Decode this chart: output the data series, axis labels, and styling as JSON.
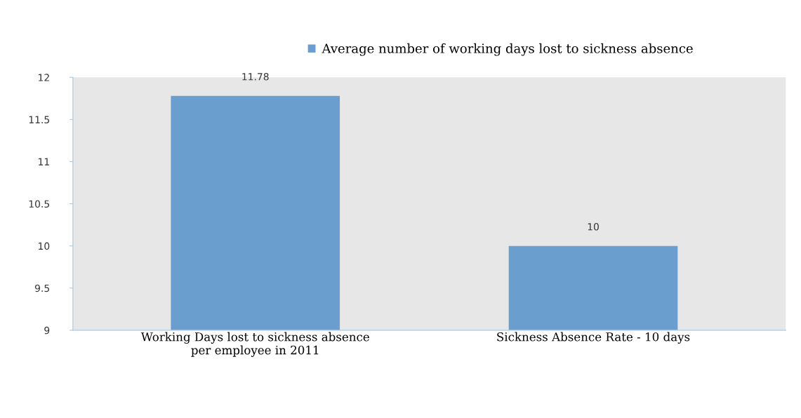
{
  "chart_data": {
    "type": "bar",
    "categories": [
      "Working Days lost to sickness absence\nper employee in 2011",
      "Sickness Absence Rate - 10 days"
    ],
    "series": [
      {
        "name": "Average number of working days lost to sickness absence",
        "color": "#6a9ecf",
        "values": [
          11.78,
          10
        ]
      }
    ],
    "ylim": [
      9,
      12
    ],
    "yticks": [
      9,
      9.5,
      10,
      10.5,
      11,
      11.5,
      12
    ],
    "data_labels": true,
    "legend": "top",
    "grid": false
  }
}
